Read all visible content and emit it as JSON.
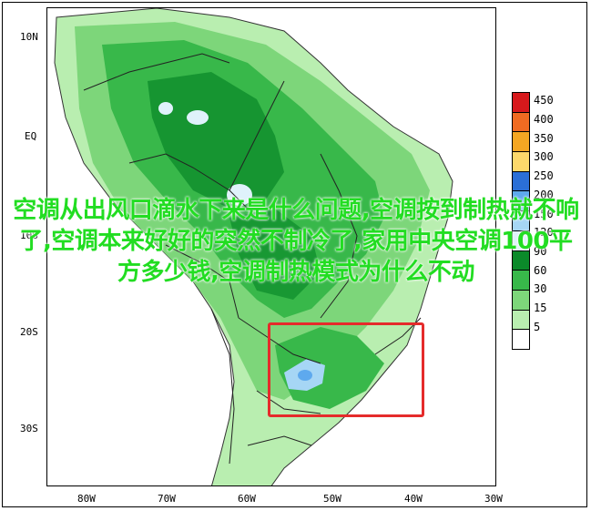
{
  "map": {
    "lat_labels": [
      "10N",
      "EQ",
      "10S",
      "20S",
      "30S"
    ],
    "lon_labels": [
      "80W",
      "70W",
      "60W",
      "50W",
      "40W",
      "30W"
    ]
  },
  "legend": {
    "items": [
      {
        "label": "450",
        "color": "#d7191c"
      },
      {
        "label": "400",
        "color": "#f06b22"
      },
      {
        "label": "350",
        "color": "#f5a623"
      },
      {
        "label": "300",
        "color": "#fdd86b"
      },
      {
        "label": "250",
        "color": "#2b6fd6"
      },
      {
        "label": "200",
        "color": "#5ea9ee"
      },
      {
        "label": "150",
        "color": "#a6d6f5"
      },
      {
        "label": "120",
        "color": "#dff2fb"
      },
      {
        "label": "90",
        "color": "#0b8a2a"
      },
      {
        "label": "60",
        "color": "#38b84a"
      },
      {
        "label": "30",
        "color": "#7dd67a"
      },
      {
        "label": "15",
        "color": "#b9eeb0"
      },
      {
        "label": "5",
        "color": "#ffffff"
      }
    ]
  },
  "overlay_text": "空调从出风口滴水下来是什么问题,空调按到制热就不响了,空调本来好好的突然不制冷了,家用中央空调100平方多少钱,空调制热模式为什么不动",
  "colors": {
    "overlay": "#22dd22",
    "highlight": "#e52b2b"
  }
}
